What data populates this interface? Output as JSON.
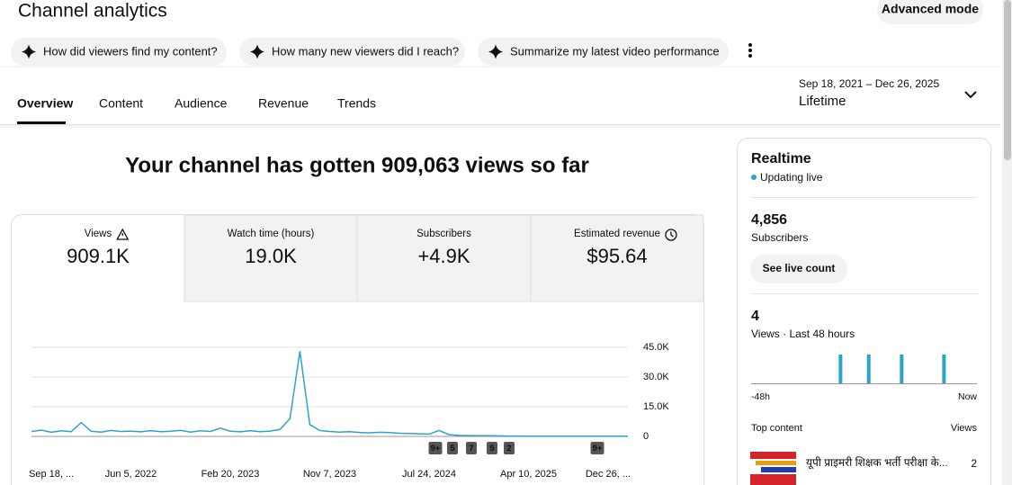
{
  "header": {
    "title": "Channel analytics",
    "advanced_mode": "Advanced mode"
  },
  "suggestions": [
    "How did viewers find my content?",
    "How many new viewers did I reach?",
    "Summarize my latest video performance"
  ],
  "tabs": [
    "Overview",
    "Content",
    "Audience",
    "Revenue",
    "Trends"
  ],
  "date_range": {
    "range": "Sep 18, 2021 – Dec 26, 2025",
    "period": "Lifetime"
  },
  "headline": "Your channel has gotten 909,063 views so far",
  "metrics": [
    {
      "label": "Views",
      "value": "909.1K"
    },
    {
      "label": "Watch time (hours)",
      "value": "19.0K"
    },
    {
      "label": "Subscribers",
      "value": "+4.9K"
    },
    {
      "label": "Estimated revenue",
      "value": "$95.64"
    }
  ],
  "views_chart": {
    "type": "line",
    "color": "#2ea3c7",
    "categories": [
      null,
      null,
      "Sep 18, ...",
      null,
      null,
      null,
      null,
      null,
      null,
      null,
      "Jun 5, 2022",
      null,
      null,
      null,
      null,
      null,
      null,
      null,
      null,
      null,
      "Feb 20, 2023",
      null,
      null,
      null,
      null,
      null,
      null,
      null,
      null,
      null,
      "Nov 7, 2023",
      null,
      null,
      null,
      null,
      null,
      null,
      null,
      null,
      null,
      "Jul 24, 2024",
      null,
      null,
      null,
      null,
      null,
      null,
      null,
      null,
      null,
      "Apr 10, 2025",
      null,
      null,
      null,
      null,
      null,
      null,
      null,
      "Dec 26, ...",
      null,
      null
    ],
    "values": [
      2500,
      3200,
      2100,
      2800,
      2400,
      7000,
      2600,
      2200,
      3000,
      2500,
      2700,
      2300,
      2900,
      2400,
      2600,
      3100,
      2200,
      2800,
      2500,
      4200,
      2600,
      2300,
      2900,
      2400,
      2700,
      3500,
      9000,
      43000,
      6000,
      3000,
      2500,
      2200,
      2400,
      2000,
      1800,
      2100,
      1900,
      1600,
      1500,
      1300,
      1200,
      3000,
      900,
      500,
      400,
      300,
      300,
      250,
      200,
      200,
      150,
      150,
      100,
      100,
      100,
      100,
      100,
      150,
      100,
      100,
      100
    ],
    "ylim": [
      0,
      45000
    ],
    "yticks": [
      0,
      {
        "value": 15000,
        "label": "15.0K"
      },
      {
        "value": 30000,
        "label": "30.0K"
      },
      {
        "value": 45000,
        "label": "45.0K"
      }
    ],
    "grid": true
  },
  "badges": [
    "9+",
    "5",
    "7",
    "5",
    "2",
    "9+"
  ],
  "realtime": {
    "title": "Realtime",
    "status": "Updating live",
    "subscribers": {
      "value": "4,856",
      "label": "Subscribers"
    },
    "see_live_count": "See live count",
    "views": {
      "value": "4",
      "label": "Views · Last 48 hours"
    },
    "chart": {
      "type": "bar",
      "color": "#2ea3c7",
      "x": [
        -29,
        -23,
        -16,
        -7
      ],
      "values": [
        1,
        1,
        1,
        1
      ],
      "xlim": [
        -48,
        0
      ],
      "xticks": [
        {
          "value": -48,
          "label": "-48h"
        },
        {
          "value": 0,
          "label": "Now"
        }
      ],
      "ylim": [
        0,
        1
      ]
    },
    "top_content": {
      "heading": "Top content",
      "views_heading": "Views",
      "items": [
        {
          "title": "यूपी प्राइमरी शिक्षक भर्ती परीक्षा के...",
          "views": "2"
        }
      ]
    }
  }
}
